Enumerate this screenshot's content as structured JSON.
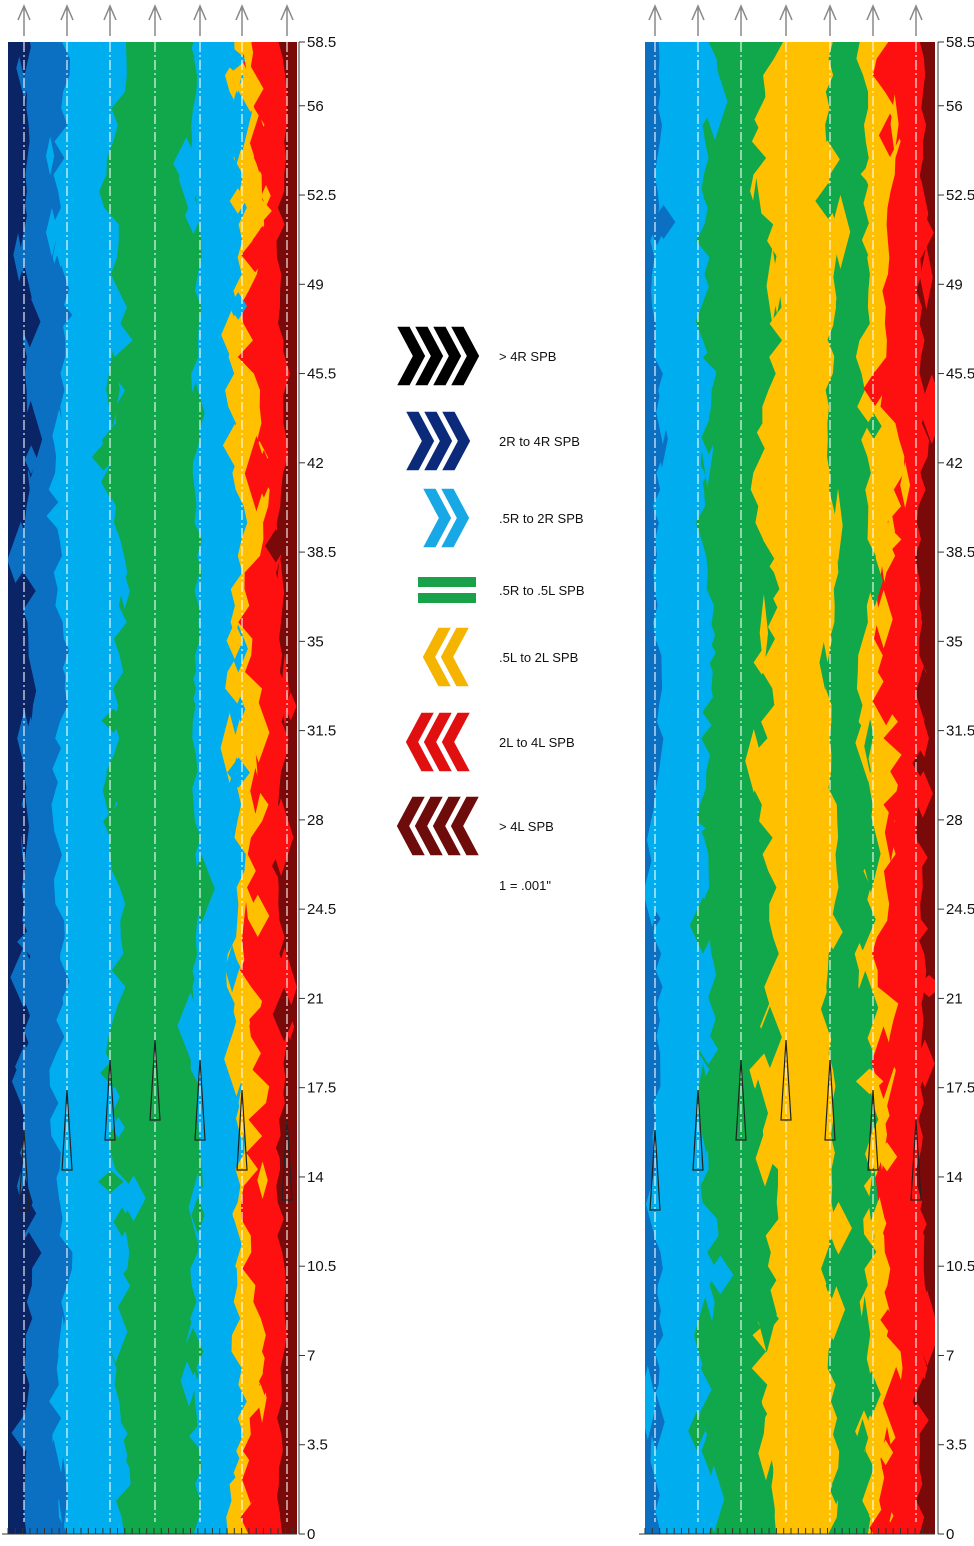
{
  "chart_data": {
    "type": "heatmap",
    "y_ticks": [
      0,
      3.5,
      7,
      10.5,
      14,
      17.5,
      21,
      24.5,
      28,
      31.5,
      35,
      38.5,
      42,
      45.5,
      49,
      52.5,
      56,
      58.5
    ],
    "ylim": [
      0,
      58.5
    ],
    "grid": "vertical dash-dot lane guides",
    "legend": {
      "placement": "center",
      "items": [
        {
          "label": "> 4R SPB",
          "color": "#000000",
          "icon": "chevron-right-icon",
          "count": 4
        },
        {
          "label": "2R to 4R SPB",
          "color": "#0b2a7a",
          "icon": "chevron-right-icon",
          "count": 3
        },
        {
          "label": ".5R to 2R SPB",
          "color": "#19a8e6",
          "icon": "chevron-right-icon",
          "count": 2
        },
        {
          "label": ".5R to .5L SPB",
          "color": "#1aa24a",
          "icon": "equals-icon",
          "count": 0
        },
        {
          "label": ".5L to 2L SPB",
          "color": "#f4b400",
          "icon": "chevron-left-icon",
          "count": 2
        },
        {
          "label": "2L to 4L SPB",
          "color": "#e01010",
          "icon": "chevron-left-icon",
          "count": 3
        },
        {
          "label": "> 4L SPB",
          "color": "#6e0b0b",
          "icon": "chevron-left-icon",
          "count": 4
        }
      ],
      "note": "1 = .001\""
    },
    "palette": {
      "dark_navy": "#0a2466",
      "mid_blue": "#0b6fc2",
      "light_blue": "#00aef0",
      "green": "#10a84a",
      "yellow": "#ffc000",
      "red": "#ff1010",
      "dark_red": "#7a0a0a"
    },
    "panels": [
      {
        "name": "left",
        "bands_left_to_right": [
          "dark_navy",
          "mid_blue",
          "light_blue",
          "green",
          "light_blue",
          "yellow",
          "red",
          "dark_red"
        ]
      },
      {
        "name": "right",
        "bands_left_to_right": [
          "mid_blue",
          "light_blue",
          "green",
          "yellow",
          "green",
          "yellow",
          "red",
          "dark_red"
        ]
      }
    ]
  }
}
